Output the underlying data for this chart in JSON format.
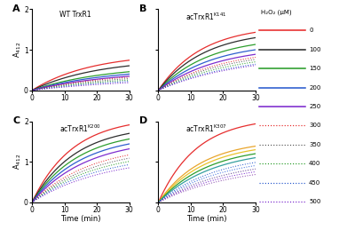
{
  "panels": [
    {
      "label": "A",
      "title": "WT TrxR1",
      "title_sup": ""
    },
    {
      "label": "B",
      "title": "acTrxR1",
      "title_sup": "K141"
    },
    {
      "label": "C",
      "title": "acTrxR1",
      "title_sup": "K200"
    },
    {
      "label": "D",
      "title": "acTrxR1",
      "title_sup": "K307"
    }
  ],
  "legend_labels": [
    "0",
    "100",
    "150",
    "200",
    "250",
    "300",
    "350",
    "400",
    "450",
    "500"
  ],
  "legend_title": "H₂O₂ (μM)",
  "line_styles": [
    "solid",
    "solid",
    "solid",
    "solid",
    "solid",
    "dotted",
    "dotted",
    "dotted",
    "dotted",
    "dotted"
  ],
  "xmax": 30,
  "ymax": 2,
  "xlabel": "Time (min)",
  "ylabel": "A$_{412}$",
  "curves": {
    "A": {
      "colors": [
        "#e52222",
        "#222222",
        "#229922",
        "#2255cc",
        "#7722cc",
        "#e52222",
        "#555555",
        "#229922",
        "#2255cc",
        "#7722cc"
      ],
      "final_vals": [
        0.92,
        0.78,
        0.62,
        0.56,
        0.5,
        0.48,
        0.44,
        0.4,
        0.36,
        0.32
      ],
      "shapes": [
        0.055,
        0.05,
        0.045,
        0.042,
        0.04,
        0.038,
        0.036,
        0.034,
        0.032,
        0.03
      ]
    },
    "B": {
      "colors": [
        "#e52222",
        "#222222",
        "#229922",
        "#2255cc",
        "#7722cc",
        "#e52222",
        "#555555",
        "#229922",
        "#2255cc",
        "#7722cc"
      ],
      "final_vals": [
        1.6,
        1.48,
        1.32,
        1.2,
        1.1,
        1.05,
        1.0,
        0.95,
        0.9,
        0.88
      ],
      "shapes": [
        0.075,
        0.07,
        0.065,
        0.06,
        0.055,
        0.05,
        0.048,
        0.045,
        0.042,
        0.04
      ]
    },
    "C": {
      "colors": [
        "#e52222",
        "#222222",
        "#229922",
        "#2255cc",
        "#7722cc",
        "#e52222",
        "#555555",
        "#229922",
        "#2255cc",
        "#7722cc"
      ],
      "final_vals": [
        2.1,
        1.9,
        1.78,
        1.68,
        1.58,
        1.45,
        1.38,
        1.3,
        1.22,
        1.15
      ],
      "shapes": [
        0.08,
        0.075,
        0.07,
        0.065,
        0.06,
        0.055,
        0.052,
        0.05,
        0.048,
        0.045
      ]
    },
    "D": {
      "colors": [
        "#e52222",
        "#e8a020",
        "#e8c020",
        "#229922",
        "#2a9a9a",
        "#2255cc",
        "#3366dd",
        "#553388",
        "#7722cc",
        "#8844aa"
      ],
      "final_vals": [
        2.1,
        1.55,
        1.48,
        1.4,
        1.32,
        1.22,
        1.15,
        1.08,
        1.02,
        0.96
      ],
      "shapes": [
        0.085,
        0.075,
        0.07,
        0.065,
        0.06,
        0.055,
        0.052,
        0.048,
        0.045,
        0.042
      ]
    }
  }
}
